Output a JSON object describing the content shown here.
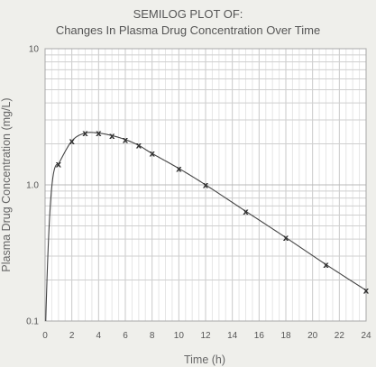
{
  "chart_data": {
    "type": "scatter",
    "title_line1": "SEMILOG PLOT OF:",
    "title_line2": "Changes In Plasma Drug Concentration Over Time",
    "xlabel": "Time (h)",
    "ylabel": "Plasma Drug Concentration (mg/L)",
    "xlim": [
      0,
      24
    ],
    "ylim": [
      0.1,
      10
    ],
    "yscale": "log",
    "xticks": [
      0,
      2,
      4,
      6,
      8,
      10,
      12,
      14,
      16,
      18,
      20,
      22,
      24
    ],
    "yticks": [
      0.1,
      1.0,
      10
    ],
    "ytick_labels": [
      "0.1",
      "1.0",
      "10"
    ],
    "grid": true,
    "points": [
      {
        "x": 1,
        "y": 1.42
      },
      {
        "x": 2,
        "y": 2.1
      },
      {
        "x": 3,
        "y": 2.4
      },
      {
        "x": 4,
        "y": 2.4
      },
      {
        "x": 5,
        "y": 2.3
      },
      {
        "x": 6,
        "y": 2.15
      },
      {
        "x": 7,
        "y": 1.95
      },
      {
        "x": 8,
        "y": 1.7
      },
      {
        "x": 10,
        "y": 1.32
      },
      {
        "x": 12,
        "y": 1.0
      },
      {
        "x": 15,
        "y": 0.64
      },
      {
        "x": 18,
        "y": 0.41
      },
      {
        "x": 21,
        "y": 0.26
      },
      {
        "x": 24,
        "y": 0.168
      }
    ],
    "series_color": "#444444",
    "marker_symbol": "x"
  }
}
